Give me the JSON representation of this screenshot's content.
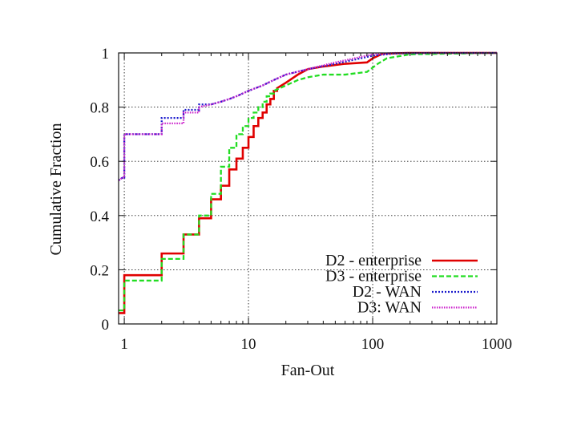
{
  "chart_data": {
    "type": "line",
    "title": "",
    "xlabel": "Fan-Out",
    "ylabel": "Cumulative Fraction",
    "xscale": "log",
    "xlim": [
      0.9,
      1000
    ],
    "ylim": [
      0,
      1
    ],
    "xticks": [
      {
        "value": 1,
        "label": "1"
      },
      {
        "value": 10,
        "label": "10"
      },
      {
        "value": 100,
        "label": "100"
      },
      {
        "value": 1000,
        "label": "1000"
      }
    ],
    "yticks": [
      {
        "value": 0,
        "label": "0"
      },
      {
        "value": 0.2,
        "label": "0.2"
      },
      {
        "value": 0.4,
        "label": "0.4"
      },
      {
        "value": 0.6,
        "label": "0.6"
      },
      {
        "value": 0.8,
        "label": "0.8"
      },
      {
        "value": 1,
        "label": "1"
      }
    ],
    "grid": true,
    "legend_position": "bottom-right",
    "series": [
      {
        "name": "D2 - enterprise",
        "color": "#e00000",
        "dash": "solid",
        "width": 2.6,
        "points": [
          [
            0.9,
            0.04
          ],
          [
            1,
            0.04
          ],
          [
            1,
            0.18
          ],
          [
            2,
            0.18
          ],
          [
            2,
            0.26
          ],
          [
            3,
            0.26
          ],
          [
            3,
            0.33
          ],
          [
            4,
            0.33
          ],
          [
            4,
            0.39
          ],
          [
            5,
            0.39
          ],
          [
            5,
            0.46
          ],
          [
            6,
            0.46
          ],
          [
            6,
            0.51
          ],
          [
            7,
            0.51
          ],
          [
            7,
            0.57
          ],
          [
            8,
            0.57
          ],
          [
            8,
            0.61
          ],
          [
            9,
            0.61
          ],
          [
            9,
            0.65
          ],
          [
            10,
            0.65
          ],
          [
            10,
            0.69
          ],
          [
            11,
            0.69
          ],
          [
            11,
            0.73
          ],
          [
            12,
            0.73
          ],
          [
            12,
            0.76
          ],
          [
            13,
            0.76
          ],
          [
            13,
            0.78
          ],
          [
            14,
            0.78
          ],
          [
            14,
            0.81
          ],
          [
            15,
            0.81
          ],
          [
            15,
            0.83
          ],
          [
            16,
            0.83
          ],
          [
            16,
            0.86
          ],
          [
            17,
            0.86
          ],
          [
            17,
            0.87
          ],
          [
            20,
            0.89
          ],
          [
            25,
            0.92
          ],
          [
            30,
            0.94
          ],
          [
            40,
            0.95
          ],
          [
            60,
            0.96
          ],
          [
            90,
            0.965
          ],
          [
            100,
            0.98
          ],
          [
            120,
            0.997
          ],
          [
            200,
            1.0
          ],
          [
            1000,
            1.0
          ]
        ]
      },
      {
        "name": "D3 - enterprise",
        "color": "#22dd22",
        "dash": "6 3",
        "width": 2.3,
        "points": [
          [
            0.9,
            0.05
          ],
          [
            1,
            0.05
          ],
          [
            1,
            0.16
          ],
          [
            2,
            0.16
          ],
          [
            2,
            0.24
          ],
          [
            3,
            0.24
          ],
          [
            3,
            0.33
          ],
          [
            4,
            0.33
          ],
          [
            4,
            0.4
          ],
          [
            5,
            0.4
          ],
          [
            5,
            0.48
          ],
          [
            6,
            0.48
          ],
          [
            6,
            0.58
          ],
          [
            7,
            0.58
          ],
          [
            7,
            0.65
          ],
          [
            8,
            0.65
          ],
          [
            8,
            0.7
          ],
          [
            9,
            0.7
          ],
          [
            9,
            0.73
          ],
          [
            10,
            0.73
          ],
          [
            10,
            0.76
          ],
          [
            11,
            0.76
          ],
          [
            11,
            0.78
          ],
          [
            12,
            0.78
          ],
          [
            12,
            0.8
          ],
          [
            13,
            0.8
          ],
          [
            13,
            0.82
          ],
          [
            14,
            0.82
          ],
          [
            14,
            0.84
          ],
          [
            15,
            0.84
          ],
          [
            15,
            0.85
          ],
          [
            16,
            0.85
          ],
          [
            16,
            0.86
          ],
          [
            20,
            0.88
          ],
          [
            25,
            0.9
          ],
          [
            30,
            0.91
          ],
          [
            40,
            0.92
          ],
          [
            60,
            0.92
          ],
          [
            90,
            0.93
          ],
          [
            110,
            0.96
          ],
          [
            130,
            0.98
          ],
          [
            200,
            0.995
          ],
          [
            1000,
            1.0
          ]
        ]
      },
      {
        "name": "D2 - WAN",
        "color": "#1a1acc",
        "dash": "2 2",
        "width": 2.3,
        "points": [
          [
            0.9,
            0.53
          ],
          [
            0.97,
            0.54
          ],
          [
            1,
            0.54
          ],
          [
            1,
            0.7
          ],
          [
            2,
            0.7
          ],
          [
            2,
            0.76
          ],
          [
            3,
            0.76
          ],
          [
            3,
            0.79
          ],
          [
            4,
            0.79
          ],
          [
            4,
            0.81
          ],
          [
            5,
            0.81
          ],
          [
            6,
            0.82
          ],
          [
            7,
            0.83
          ],
          [
            8,
            0.84
          ],
          [
            10,
            0.86
          ],
          [
            13,
            0.88
          ],
          [
            16,
            0.9
          ],
          [
            20,
            0.92
          ],
          [
            30,
            0.94
          ],
          [
            50,
            0.96
          ],
          [
            80,
            0.98
          ],
          [
            100,
            0.99
          ],
          [
            150,
            0.998
          ],
          [
            300,
            1.0
          ],
          [
            1000,
            1.0
          ]
        ]
      },
      {
        "name": "D3: WAN",
        "color": "#cc22cc",
        "dash": "1.5 1.5",
        "width": 2.3,
        "points": [
          [
            0.9,
            0.53
          ],
          [
            0.97,
            0.54
          ],
          [
            1,
            0.54
          ],
          [
            1,
            0.7
          ],
          [
            2,
            0.7
          ],
          [
            2,
            0.74
          ],
          [
            3,
            0.74
          ],
          [
            3,
            0.78
          ],
          [
            4,
            0.78
          ],
          [
            4,
            0.8
          ],
          [
            5,
            0.81
          ],
          [
            6,
            0.82
          ],
          [
            7,
            0.83
          ],
          [
            8,
            0.84
          ],
          [
            10,
            0.86
          ],
          [
            13,
            0.88
          ],
          [
            16,
            0.9
          ],
          [
            20,
            0.92
          ],
          [
            30,
            0.94
          ],
          [
            50,
            0.965
          ],
          [
            80,
            0.985
          ],
          [
            100,
            0.995
          ],
          [
            150,
            1.0
          ],
          [
            1000,
            1.0
          ]
        ]
      }
    ]
  }
}
